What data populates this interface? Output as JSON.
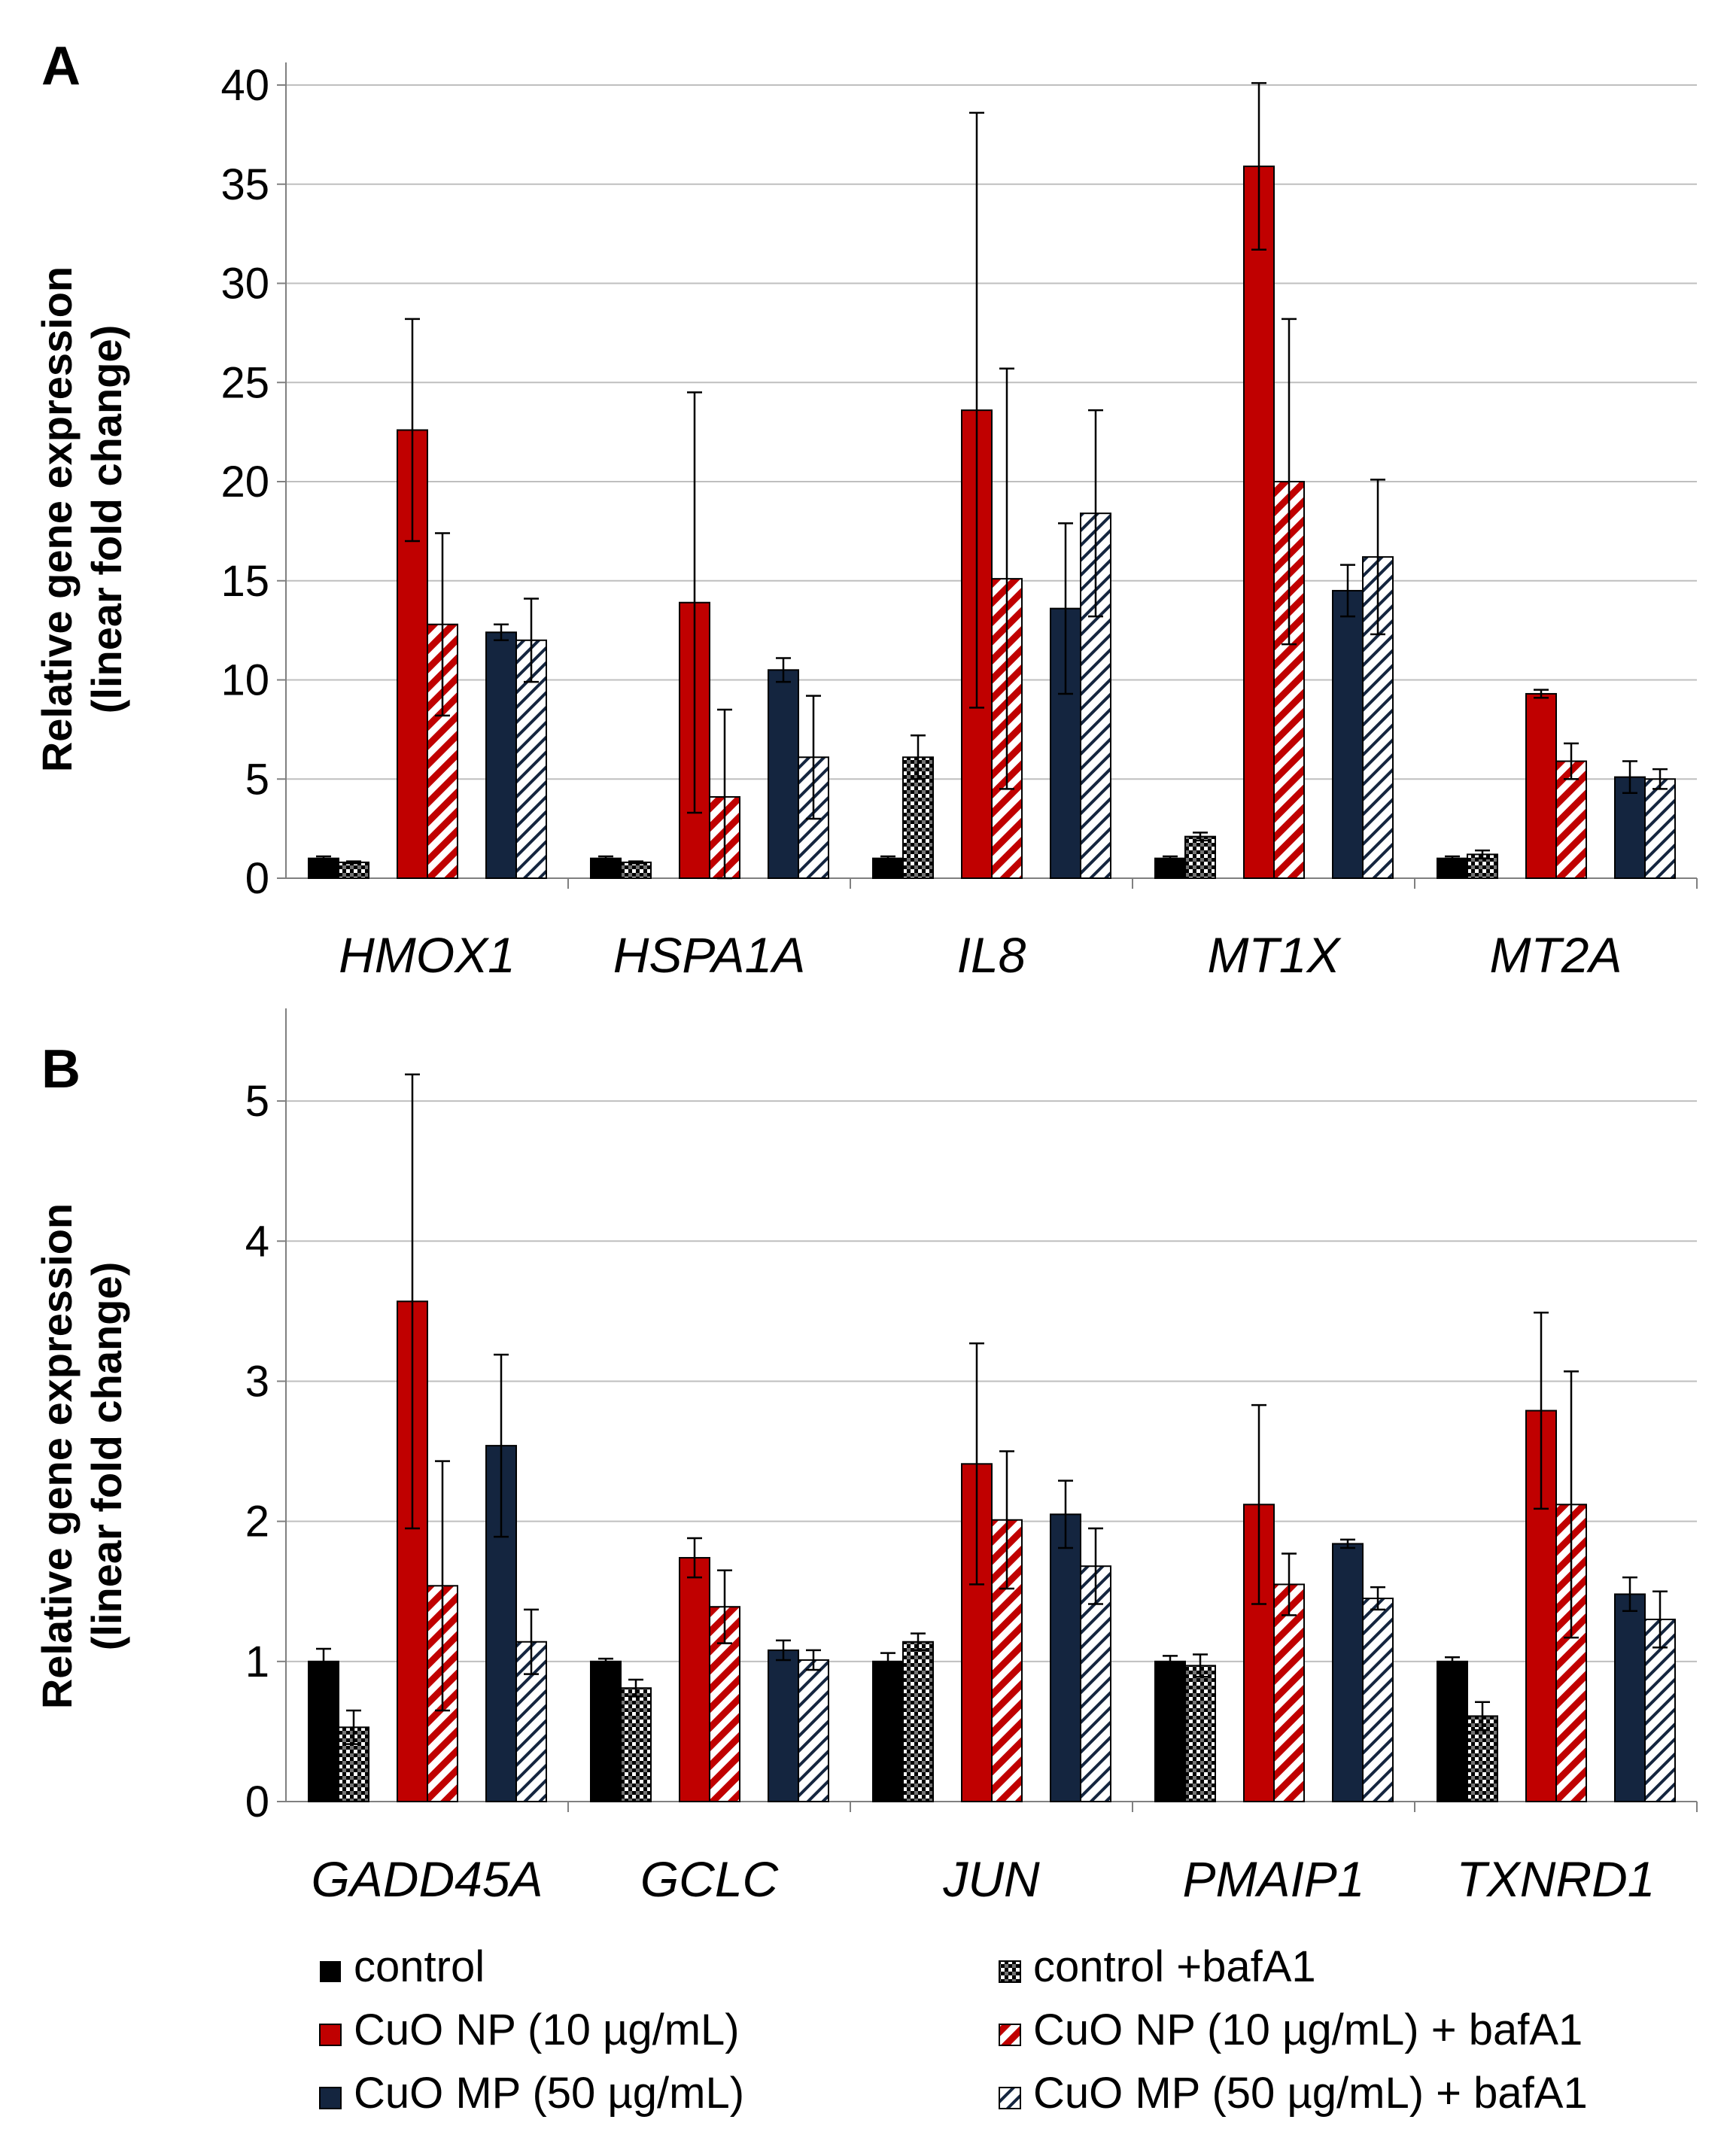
{
  "colors": {
    "control": "#000000",
    "np": "#C00000",
    "mp": "#14253F",
    "grid": "#BFBFBF",
    "axis": "#808080"
  },
  "legend": [
    {
      "key": "control",
      "label": "control",
      "color": "#000000",
      "pattern": "solid"
    },
    {
      "key": "control_baf",
      "label": "control +bafA1",
      "color": "#000000",
      "pattern": "checker"
    },
    {
      "key": "np",
      "label": "CuO NP (10 µg/mL)",
      "color": "#C00000",
      "pattern": "solid"
    },
    {
      "key": "np_baf",
      "label": "CuO NP (10 µg/mL) + bafA1",
      "color": "#C00000",
      "pattern": "diag"
    },
    {
      "key": "mp",
      "label": "CuO MP (50 µg/mL)",
      "color": "#14253F",
      "pattern": "solid"
    },
    {
      "key": "mp_baf",
      "label": "CuO MP (50 µg/mL) + bafA1",
      "color": "#14253F",
      "pattern": "diag-light"
    }
  ],
  "chart_data": [
    {
      "panel": "A",
      "type": "bar",
      "ylabel": "Relative gene expression (linear fold change)",
      "ylabel_lines": [
        "Relative gene expression",
        "(linear fold change)"
      ],
      "ylim": [
        0,
        40
      ],
      "yticks": [
        0,
        5,
        10,
        15,
        20,
        25,
        30,
        35,
        40
      ],
      "grid": true,
      "categories": [
        "HMOX1",
        "HSPA1A",
        "IL8",
        "MT1X",
        "MT2A"
      ],
      "series": [
        {
          "name": "control",
          "values": [
            1.0,
            1.0,
            1.0,
            1.0,
            1.0
          ],
          "errors": [
            0.1,
            0.1,
            0.1,
            0.1,
            0.1
          ]
        },
        {
          "name": "control +bafA1",
          "values": [
            0.8,
            0.8,
            6.1,
            2.1,
            1.2
          ],
          "errors": [
            0.05,
            0.05,
            1.1,
            0.2,
            0.2
          ]
        },
        {
          "name": "CuO NP (10 µg/mL)",
          "values": [
            22.6,
            13.9,
            23.6,
            35.9,
            9.3
          ],
          "errors": [
            5.6,
            10.6,
            15.0,
            4.2,
            0.2
          ]
        },
        {
          "name": "CuO NP (10 µg/mL) + bafA1",
          "values": [
            12.8,
            4.1,
            15.1,
            20.0,
            5.9
          ],
          "errors": [
            4.6,
            4.4,
            10.6,
            8.2,
            0.9
          ]
        },
        {
          "name": "CuO MP (50 µg/mL)",
          "values": [
            12.4,
            10.5,
            13.6,
            14.5,
            5.1
          ],
          "errors": [
            0.4,
            0.6,
            4.3,
            1.3,
            0.8
          ]
        },
        {
          "name": "CuO MP (50 µg/mL) + bafA1",
          "values": [
            12.0,
            6.1,
            18.4,
            16.2,
            5.0
          ],
          "errors": [
            2.1,
            3.1,
            5.2,
            3.9,
            0.5
          ]
        }
      ]
    },
    {
      "panel": "B",
      "type": "bar",
      "ylabel": "Relative gene expression (linear fold change)",
      "ylabel_lines": [
        "Relative gene expression",
        "(linear fold change)"
      ],
      "ylim": [
        0,
        5.5
      ],
      "yticks": [
        0,
        1,
        2,
        3,
        4,
        5
      ],
      "grid": true,
      "categories": [
        "GADD45A",
        "GCLC",
        "JUN",
        "PMAIP1",
        "TXNRD1"
      ],
      "series": [
        {
          "name": "control",
          "values": [
            1.0,
            1.0,
            1.0,
            1.0,
            1.0
          ],
          "errors": [
            0.09,
            0.02,
            0.06,
            0.04,
            0.03
          ]
        },
        {
          "name": "control +bafA1",
          "values": [
            0.53,
            0.81,
            1.14,
            0.97,
            0.61
          ],
          "errors": [
            0.12,
            0.06,
            0.06,
            0.08,
            0.1
          ]
        },
        {
          "name": "CuO NP (10 µg/mL)",
          "values": [
            3.57,
            1.74,
            2.41,
            2.12,
            2.79
          ],
          "errors": [
            1.62,
            0.14,
            0.86,
            0.71,
            0.7
          ]
        },
        {
          "name": "CuO NP (10 µg/mL) + bafA1",
          "values": [
            1.54,
            1.39,
            2.01,
            1.55,
            2.12
          ],
          "errors": [
            0.89,
            0.26,
            0.49,
            0.22,
            0.95
          ]
        },
        {
          "name": "CuO MP (50 µg/mL)",
          "values": [
            2.54,
            1.08,
            2.05,
            1.84,
            1.48
          ],
          "errors": [
            0.65,
            0.07,
            0.24,
            0.03,
            0.12
          ]
        },
        {
          "name": "CuO MP (50 µg/mL) + bafA1",
          "values": [
            1.14,
            1.01,
            1.68,
            1.45,
            1.3
          ],
          "errors": [
            0.23,
            0.07,
            0.27,
            0.08,
            0.2
          ]
        }
      ]
    }
  ]
}
